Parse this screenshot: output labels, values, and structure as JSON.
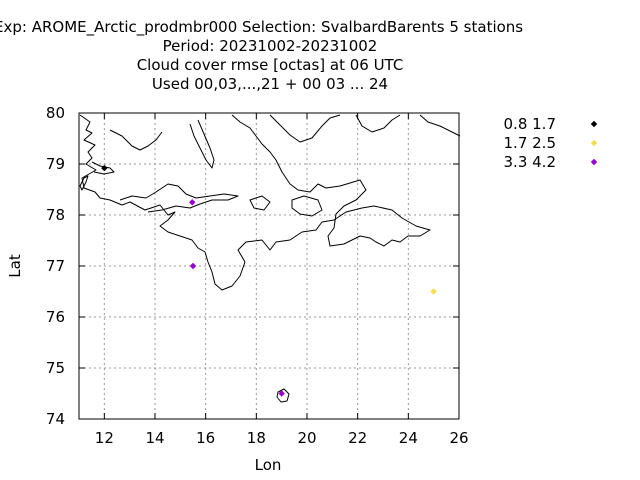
{
  "chart_data": {
    "type": "scatter",
    "title_lines": [
      "Exp: AROME_Arctic_prodmbr000   Selection: SvalbardBarents      5 stations",
      "Period: 20231002-20231002",
      "Cloud cover rmse [octas] at  06 UTC",
      "Used  00,03,...,21  + 00 03 ... 24"
    ],
    "xlabel": "Lon",
    "ylabel": "Lat",
    "xlim": [
      11,
      26
    ],
    "ylim": [
      74,
      80
    ],
    "xticks": [
      12,
      14,
      16,
      18,
      20,
      22,
      24,
      26
    ],
    "yticks": [
      74,
      75,
      76,
      77,
      78,
      79,
      80
    ],
    "grid": true,
    "legend_position": "right",
    "series": [
      {
        "name": "0.8 1.7",
        "color": "#000000",
        "points": [
          {
            "x": 12.0,
            "y": 78.92
          }
        ]
      },
      {
        "name": "1.7 2.5",
        "color": "#f0e050",
        "points": [
          {
            "x": 25.0,
            "y": 76.5
          }
        ]
      },
      {
        "name": "3.3 4.2",
        "color": "#9400d3",
        "points": [
          {
            "x": 15.47,
            "y": 78.25
          },
          {
            "x": 15.5,
            "y": 77.0
          },
          {
            "x": 19.0,
            "y": 74.5
          }
        ]
      }
    ]
  }
}
